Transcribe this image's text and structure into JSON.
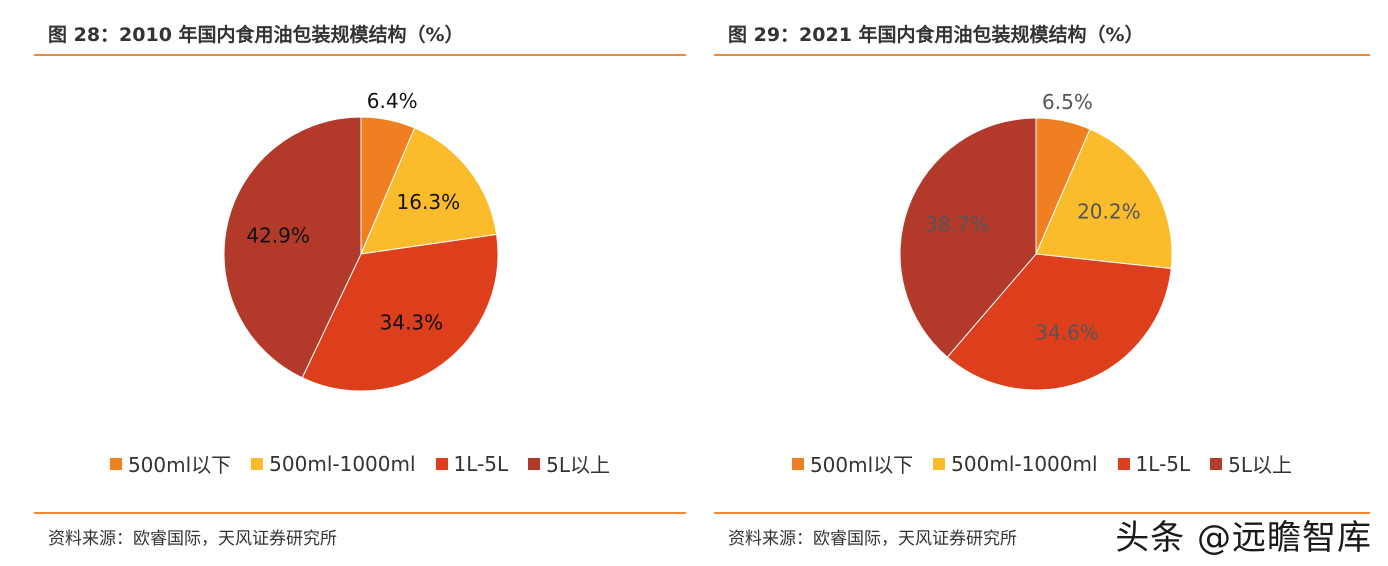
{
  "chart_data": [
    {
      "type": "pie",
      "title": "图 28：2010 年国内食用油包装规模结构（%）",
      "categories": [
        "500ml以下",
        "500ml-1000ml",
        "1L-5L",
        "5L以上"
      ],
      "values": [
        6.4,
        16.3,
        34.3,
        42.9
      ],
      "labels": [
        "6.4%",
        "16.3%",
        "34.3%",
        "42.9%"
      ],
      "colors": [
        "#f07f22",
        "#fbbc2b",
        "#dd3e1c",
        "#b3392a"
      ],
      "label_color": "#111111",
      "legend": "bottom",
      "source": "资料来源：欧睿国际，天风证券研究所"
    },
    {
      "type": "pie",
      "title": "图 29：2021 年国内食用油包装规模结构（%）",
      "categories": [
        "500ml以下",
        "500ml-1000ml",
        "1L-5L",
        "5L以上"
      ],
      "values": [
        6.5,
        20.2,
        34.6,
        38.7
      ],
      "labels": [
        "6.5%",
        "20.2%",
        "34.6%",
        "38.7%"
      ],
      "colors": [
        "#f07f22",
        "#fbbc2b",
        "#dd3e1c",
        "#b3392a"
      ],
      "label_color": "#555555",
      "legend": "bottom",
      "source": "资料来源：欧睿国际，天风证券研究所"
    }
  ],
  "watermark": "头条 @远瞻智库"
}
